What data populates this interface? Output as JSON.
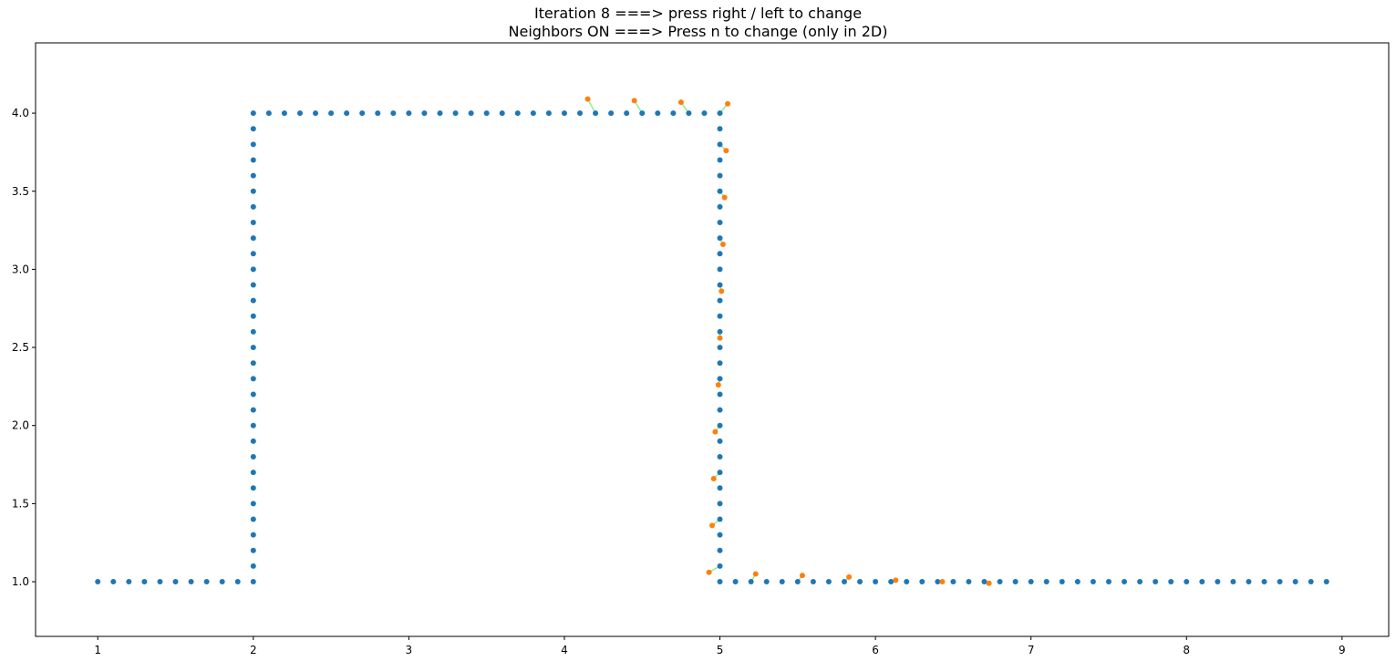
{
  "chart_data": {
    "type": "scatter",
    "title_line1": "Iteration 8 ===> press right / left to change",
    "title_line2": "Neighbors ON ===> Press n to change (only in 2D)",
    "xlabel": "",
    "ylabel": "",
    "xlim": [
      0.6,
      9.3
    ],
    "ylim": [
      0.65,
      4.45
    ],
    "xticks": [
      1,
      2,
      3,
      4,
      5,
      6,
      7,
      8,
      9
    ],
    "xtick_labels": [
      "1",
      "2",
      "3",
      "4",
      "5",
      "6",
      "7",
      "8",
      "9"
    ],
    "yticks": [
      1.0,
      1.5,
      2.0,
      2.5,
      3.0,
      3.5,
      4.0
    ],
    "ytick_labels": [
      "1.0",
      "1.5",
      "2.0",
      "2.5",
      "3.0",
      "3.5",
      "4.0"
    ],
    "grid": false,
    "legend": "none",
    "colors": {
      "reference": "#1f77b4",
      "moving": "#ff7f0e",
      "link": "#90ee90"
    },
    "series": [
      {
        "role": "reference",
        "segments": [
          {
            "axis": "x",
            "fixed": 1.0,
            "start": 1.0,
            "end": 2.0,
            "step": 0.1
          },
          {
            "axis": "y",
            "fixed": 2.0,
            "start": 1.1,
            "end": 4.0,
            "step": 0.1
          },
          {
            "axis": "x",
            "fixed": 4.0,
            "start": 2.1,
            "end": 5.0,
            "step": 0.1
          },
          {
            "axis": "y",
            "fixed": 5.0,
            "start": 1.0,
            "end": 3.9,
            "step": 0.1
          },
          {
            "axis": "x",
            "fixed": 1.0,
            "start": 5.1,
            "end": 8.9,
            "step": 0.1
          }
        ]
      },
      {
        "role": "moving",
        "points": [
          [
            4.15,
            4.09
          ],
          [
            4.45,
            4.08
          ],
          [
            4.75,
            4.07
          ],
          [
            5.05,
            4.06
          ],
          [
            5.04,
            3.76
          ],
          [
            5.03,
            3.46
          ],
          [
            5.02,
            3.16
          ],
          [
            5.01,
            2.86
          ],
          [
            5.0,
            2.56
          ],
          [
            4.99,
            2.26
          ],
          [
            4.97,
            1.96
          ],
          [
            4.96,
            1.66
          ],
          [
            4.95,
            1.36
          ],
          [
            4.93,
            1.06
          ],
          [
            5.23,
            1.05
          ],
          [
            5.53,
            1.04
          ],
          [
            5.83,
            1.03
          ],
          [
            6.13,
            1.01
          ],
          [
            6.43,
            1.0
          ],
          [
            6.73,
            0.99
          ]
        ],
        "neighbors": [
          [
            4.2,
            4.0
          ],
          [
            4.5,
            4.0
          ],
          [
            4.8,
            4.0
          ],
          [
            5.0,
            4.0
          ],
          [
            5.0,
            3.8
          ],
          [
            5.0,
            3.5
          ],
          [
            5.0,
            3.2
          ],
          [
            5.0,
            2.9
          ],
          [
            5.0,
            2.6
          ],
          [
            5.0,
            2.3
          ],
          [
            5.0,
            2.0
          ],
          [
            5.0,
            1.7
          ],
          [
            5.0,
            1.4
          ],
          [
            5.0,
            1.1
          ],
          [
            5.2,
            1.0
          ],
          [
            5.5,
            1.0
          ],
          [
            5.8,
            1.0
          ],
          [
            6.1,
            1.0
          ],
          [
            6.4,
            1.0
          ],
          [
            6.7,
            1.0
          ]
        ]
      }
    ]
  }
}
